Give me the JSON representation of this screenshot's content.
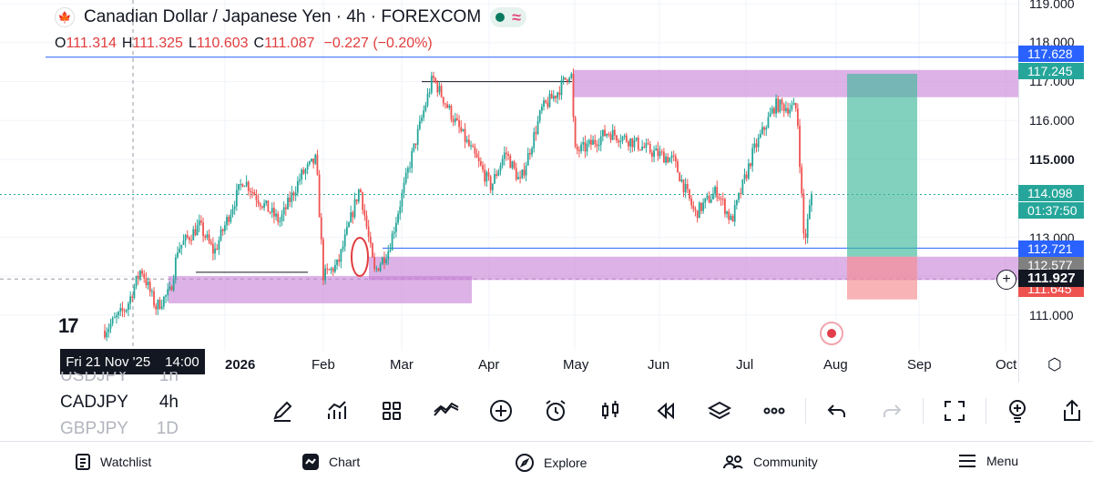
{
  "header": {
    "title": "Canadian Dollar / Japanese Yen · 4h · FOREXCOM",
    "ohlc": {
      "open_label": "O",
      "open": "111.314",
      "high_label": "H",
      "high": "111.325",
      "low_label": "L",
      "low": "110.603",
      "close_label": "C",
      "close": "111.087",
      "change": "−0.227 (−0.20%)"
    }
  },
  "colors": {
    "up": "#26a69a",
    "down": "#ef5350",
    "zone": "#c77fd6",
    "profit": "#3fb99b",
    "loss": "#f58a8f",
    "accent": "#2962ff"
  },
  "price_axis": {
    "labels": [
      "119.000",
      "118.000",
      "117.000",
      "116.000",
      "115.000",
      "113.000",
      "111.000"
    ],
    "tags": [
      {
        "value": "117.628",
        "color": "#2962ff"
      },
      {
        "value": "117.245",
        "color": "#26a69a"
      },
      {
        "value": "114.098",
        "color": "#26a69a"
      },
      {
        "value": "01:37:50",
        "color": "#26a69a"
      },
      {
        "value": "112.721",
        "color": "#2962ff"
      },
      {
        "value": "112.577",
        "color": "#808080"
      },
      {
        "value": "111.927",
        "color": "#131722"
      },
      {
        "value": "111.645",
        "color": "#ef5350"
      }
    ]
  },
  "time_axis": {
    "crosshair_date": "Fri 21 Nov '25",
    "crosshair_time": "14:00",
    "labels": [
      "2026",
      "Feb",
      "Mar",
      "Apr",
      "May",
      "Jun",
      "Jul",
      "Aug",
      "Sep",
      "Oct"
    ]
  },
  "chart_data": {
    "type": "candlestick",
    "symbol": "CADJPY",
    "timeframe": "4h",
    "path": [
      {
        "t": 0.0,
        "p": 110.6
      },
      {
        "t": 0.03,
        "p": 111.2
      },
      {
        "t": 0.05,
        "p": 112.2
      },
      {
        "t": 0.07,
        "p": 111.2
      },
      {
        "t": 0.09,
        "p": 111.6
      },
      {
        "t": 0.1,
        "p": 112.7
      },
      {
        "t": 0.13,
        "p": 113.3
      },
      {
        "t": 0.15,
        "p": 112.6
      },
      {
        "t": 0.19,
        "p": 114.5
      },
      {
        "t": 0.21,
        "p": 114.0
      },
      {
        "t": 0.24,
        "p": 113.4
      },
      {
        "t": 0.27,
        "p": 114.6
      },
      {
        "t": 0.29,
        "p": 115.0
      },
      {
        "t": 0.3,
        "p": 112.0
      },
      {
        "t": 0.32,
        "p": 112.3
      },
      {
        "t": 0.35,
        "p": 114.3
      },
      {
        "t": 0.37,
        "p": 112.1
      },
      {
        "t": 0.39,
        "p": 112.7
      },
      {
        "t": 0.42,
        "p": 115.0
      },
      {
        "t": 0.45,
        "p": 117.1
      },
      {
        "t": 0.48,
        "p": 116.0
      },
      {
        "t": 0.51,
        "p": 115.0
      },
      {
        "t": 0.53,
        "p": 114.3
      },
      {
        "t": 0.55,
        "p": 115.2
      },
      {
        "t": 0.57,
        "p": 114.4
      },
      {
        "t": 0.6,
        "p": 116.3
      },
      {
        "t": 0.62,
        "p": 116.7
      },
      {
        "t": 0.64,
        "p": 117.3
      },
      {
        "t": 0.645,
        "p": 115.2
      },
      {
        "t": 0.66,
        "p": 115.3
      },
      {
        "t": 0.69,
        "p": 115.7
      },
      {
        "t": 0.72,
        "p": 115.5
      },
      {
        "t": 0.75,
        "p": 115.2
      },
      {
        "t": 0.78,
        "p": 115.0
      },
      {
        "t": 0.81,
        "p": 113.6
      },
      {
        "t": 0.84,
        "p": 114.2
      },
      {
        "t": 0.86,
        "p": 113.4
      },
      {
        "t": 0.89,
        "p": 115.2
      },
      {
        "t": 0.92,
        "p": 116.4
      },
      {
        "t": 0.95,
        "p": 116.3
      },
      {
        "t": 0.96,
        "p": 112.8
      },
      {
        "t": 0.97,
        "p": 114.1
      }
    ],
    "zones": [
      {
        "type": "supply",
        "from_price": 116.6,
        "to_price": 117.3
      },
      {
        "type": "demand",
        "from_price": 111.9,
        "to_price": 112.5
      },
      {
        "type": "demand",
        "from_price": 111.3,
        "to_price": 112.0
      }
    ],
    "position": {
      "entry": 112.5,
      "target": 117.2,
      "stop": 111.4
    },
    "levels": [
      117.628,
      112.721
    ]
  },
  "symbol_list": [
    {
      "symbol": "USDJPY",
      "tf": "1h",
      "faded": true
    },
    {
      "symbol": "CADJPY",
      "tf": "4h",
      "faded": false
    },
    {
      "symbol": "GBPJPY",
      "tf": "1D",
      "faded": true
    }
  ],
  "toolbar": {
    "icons": [
      "pencil-icon",
      "indicators-icon",
      "layout-grid-icon",
      "compare-icon",
      "add-icon",
      "alarm-icon",
      "candles-icon",
      "replay-icon",
      "layers-icon",
      "more-icon",
      "undo-icon",
      "redo-icon",
      "fullscreen-icon",
      "ideas-icon",
      "share-icon"
    ]
  },
  "bottom_nav": {
    "watchlist": "Watchlist",
    "chart": "Chart",
    "explore": "Explore",
    "community": "Community",
    "menu": "Menu"
  }
}
